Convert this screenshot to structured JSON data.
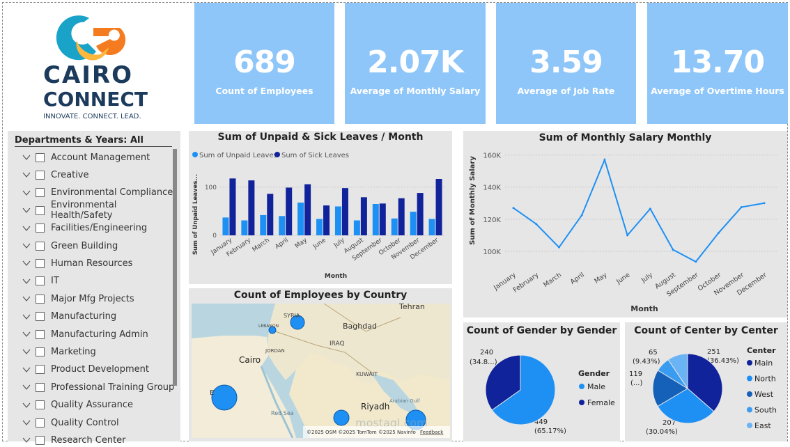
{
  "logo": {
    "line1": "CAIRO",
    "line2": "CONNECT",
    "tagline": "INNOVATE. CONNECT. LEAD."
  },
  "kpis": [
    {
      "value": "689",
      "label": "Count of Employees"
    },
    {
      "value": "2.07K",
      "label": "Average of Monthly Salary"
    },
    {
      "value": "3.59",
      "label": "Average of Job Rate"
    },
    {
      "value": "13.70",
      "label": "Average of Overtime Hours"
    }
  ],
  "slicer": {
    "title": "Departments & Years: All",
    "items": [
      "Account Management",
      "Creative",
      "Environmental Compliance",
      "Environmental Health/Safety",
      "Facilities/Engineering",
      "Green Building",
      "Human Resources",
      "IT",
      "Major Mfg Projects",
      "Manufacturing",
      "Manufacturing Admin",
      "Marketing",
      "Product Development",
      "Professional Training Group",
      "Quality Assurance",
      "Quality Control",
      "Research Center"
    ]
  },
  "leaves_chart": {
    "title": "Sum of Unpaid & Sick Leaves / Month",
    "legend_unpaid": "Sum of Unpaid Leaves",
    "legend_sick": "Sum of Sick Leaves",
    "ylabel": "Sum of Unpaid Leaves...",
    "xlabel": "Month"
  },
  "salary_chart": {
    "title": "Sum of Monthly Salary Monthly",
    "ylabel": "Sum of Monthly Salary",
    "xlabel": "Month"
  },
  "map": {
    "title": "Count of Employees by Country",
    "labels": {
      "syria": "SYRIA",
      "lebanon": "LEBANON",
      "baghdad": "Baghdad",
      "iraq": "IRAQ",
      "jordan": "JORDAN",
      "cairo": "Cairo",
      "kuwait": "KUWAIT",
      "riyadh": "Riyadh",
      "tehran": "Tehran",
      "red_sea": "Red Sea",
      "arabian_gulf": "Arabian Gulf",
      "e": "E"
    },
    "attribution": "©2025 OSM ©2025 TomTom ©2025 Navinfo",
    "feedback": "Feedback",
    "watermark": "mostaql.com"
  },
  "gender_chart": {
    "title": "Count of Gender by Gender",
    "legend_title": "Gender",
    "labels": {
      "female_count": "240",
      "female_pct": "(34.8...)",
      "male_count": "449",
      "male_pct": "(65.17%)"
    }
  },
  "center_chart": {
    "title": "Count of Center by Center",
    "legend_title": "Center",
    "labels": {
      "main_count": "251",
      "main_pct": "(36.43%)",
      "north_count": "207",
      "north_pct": "(30.04%)",
      "west_count": "119",
      "west_pct": "(...)",
      "east_count": "65",
      "east_pct": "(9.43%)"
    }
  },
  "chart_data": [
    {
      "type": "bar",
      "title": "Sum of Unpaid & Sick Leaves / Month",
      "categories": [
        "January",
        "February",
        "March",
        "April",
        "May",
        "June",
        "July",
        "August",
        "September",
        "October",
        "November",
        "December"
      ],
      "series": [
        {
          "name": "Sum of Unpaid Leaves",
          "color": "#1e90f4",
          "values": [
            37,
            31,
            42,
            40,
            68,
            34,
            60,
            31,
            65,
            35,
            49,
            34
          ]
        },
        {
          "name": "Sum of Sick Leaves",
          "color": "#11239a",
          "values": [
            118,
            114,
            86,
            99,
            106,
            62,
            98,
            79,
            66,
            77,
            88,
            117
          ]
        }
      ],
      "yticks": [
        0,
        100
      ],
      "ylim": [
        0,
        130
      ],
      "xlabel": "Month",
      "ylabel": "Sum of Unpaid Leaves..."
    },
    {
      "type": "line",
      "title": "Sum of Monthly Salary Monthly",
      "categories": [
        "January",
        "February",
        "March",
        "April",
        "May",
        "June",
        "July",
        "August",
        "September",
        "October",
        "November",
        "December"
      ],
      "series": [
        {
          "name": "Sum of Monthly Salary",
          "color": "#1e90f4",
          "values": [
            127000,
            117000,
            102500,
            122500,
            157000,
            110000,
            126500,
            101000,
            93500,
            111500,
            127500,
            130000
          ]
        }
      ],
      "yticks": [
        100000,
        120000,
        140000,
        160000
      ],
      "ytick_labels": [
        "100K",
        "120K",
        "140K",
        "160K"
      ],
      "ylim": [
        90000,
        162000
      ],
      "xlabel": "Month",
      "ylabel": "Sum of Monthly Salary"
    },
    {
      "type": "pie",
      "title": "Count of Gender by Gender",
      "categories": [
        "Male",
        "Female"
      ],
      "values": [
        449,
        240
      ],
      "colors": [
        "#1e90f4",
        "#11239a"
      ]
    },
    {
      "type": "pie",
      "title": "Count of Center by Center",
      "categories": [
        "Main",
        "North",
        "West",
        "South",
        "East"
      ],
      "values": [
        251,
        207,
        119,
        47,
        65
      ],
      "colors": [
        "#11239a",
        "#1e90f4",
        "#1560b8",
        "#3a9cf0",
        "#6ab4f5"
      ]
    }
  ]
}
